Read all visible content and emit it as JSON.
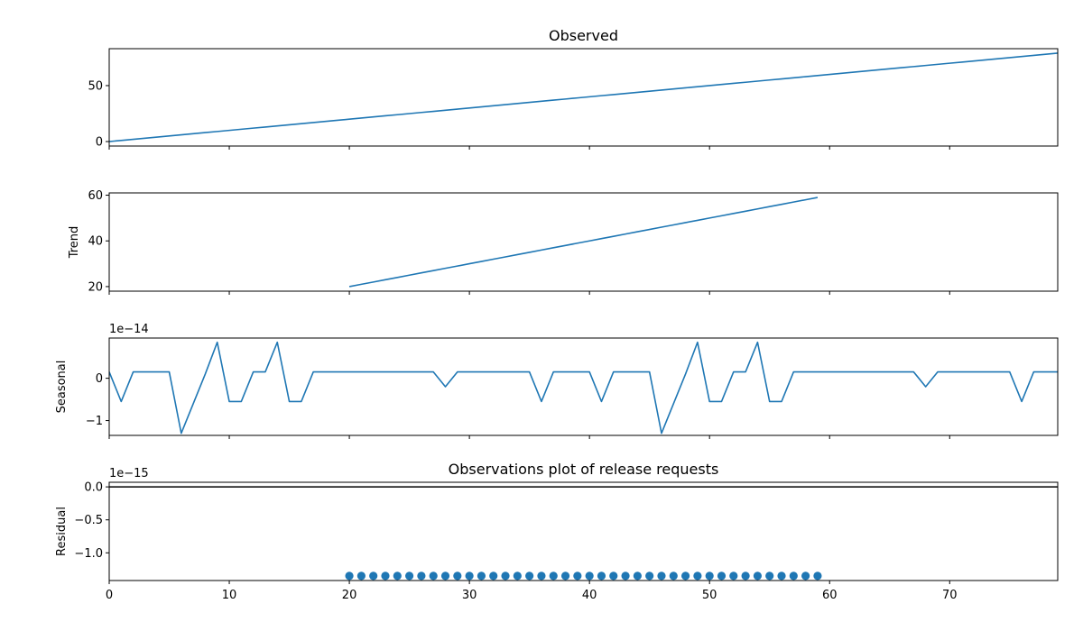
{
  "figure": {
    "line_color": "#1f77b4",
    "marker_color": "#1f77b4"
  },
  "chart_data": [
    {
      "type": "line",
      "title": "Observed",
      "ylabel": "",
      "offset_text": "",
      "xlim": [
        0,
        79
      ],
      "ylim": [
        -4,
        83
      ],
      "yticks": [
        0,
        50
      ],
      "ytick_labels": [
        "0",
        "50"
      ],
      "series": [
        {
          "x_start": 0,
          "step": 1,
          "values": [
            0,
            1,
            2,
            3,
            4,
            5,
            6,
            7,
            8,
            9,
            10,
            11,
            12,
            13,
            14,
            15,
            16,
            17,
            18,
            19,
            20,
            21,
            22,
            23,
            24,
            25,
            26,
            27,
            28,
            29,
            30,
            31,
            32,
            33,
            34,
            35,
            36,
            37,
            38,
            39,
            40,
            41,
            42,
            43,
            44,
            45,
            46,
            47,
            48,
            49,
            50,
            51,
            52,
            53,
            54,
            55,
            56,
            57,
            58,
            59,
            60,
            61,
            62,
            63,
            64,
            65,
            66,
            67,
            68,
            69,
            70,
            71,
            72,
            73,
            74,
            75,
            76,
            77,
            78,
            79
          ]
        }
      ]
    },
    {
      "type": "line",
      "title": "",
      "ylabel": "Trend",
      "offset_text": "",
      "xlim": [
        0,
        79
      ],
      "ylim": [
        18,
        61
      ],
      "yticks": [
        20,
        40,
        60
      ],
      "ytick_labels": [
        "20",
        "40",
        "60"
      ],
      "series": [
        {
          "x_start": 20,
          "step": 1,
          "values": [
            20,
            21,
            22,
            23,
            24,
            25,
            26,
            27,
            28,
            29,
            30,
            31,
            32,
            33,
            34,
            35,
            36,
            37,
            38,
            39,
            40,
            41,
            42,
            43,
            44,
            45,
            46,
            47,
            48,
            49,
            50,
            51,
            52,
            53,
            54,
            55,
            56,
            57,
            58,
            59
          ]
        }
      ]
    },
    {
      "type": "line",
      "title": "",
      "ylabel": "Seasonal",
      "offset_text": "1e−14",
      "xlim": [
        0,
        79
      ],
      "ylim": [
        -1.35,
        0.95
      ],
      "yticks": [
        -1,
        0
      ],
      "ytick_labels": [
        "−1",
        "0"
      ],
      "series": [
        {
          "x_start": 0,
          "step": 1,
          "values": [
            0.15,
            -0.55,
            0.15,
            0.15,
            0.15,
            0.15,
            -1.3,
            -0.6,
            0.1,
            0.85,
            -0.55,
            -0.55,
            0.15,
            0.15,
            0.85,
            -0.55,
            -0.55,
            0.15,
            0.15,
            0.15,
            0.15,
            0.15,
            0.15,
            0.15,
            0.15,
            0.15,
            0.15,
            0.15,
            -0.2,
            0.15,
            0.15,
            0.15,
            0.15,
            0.15,
            0.15,
            0.15,
            -0.55,
            0.15,
            0.15,
            0.15,
            0.15,
            -0.55,
            0.15,
            0.15,
            0.15,
            0.15,
            -1.3,
            -0.6,
            0.1,
            0.85,
            -0.55,
            -0.55,
            0.15,
            0.15,
            0.85,
            -0.55,
            -0.55,
            0.15,
            0.15,
            0.15,
            0.15,
            0.15,
            0.15,
            0.15,
            0.15,
            0.15,
            0.15,
            0.15,
            -0.2,
            0.15,
            0.15,
            0.15,
            0.15,
            0.15,
            0.15,
            0.15,
            -0.55,
            0.15,
            0.15,
            0.15
          ]
        }
      ]
    },
    {
      "type": "scatter",
      "title": "Observations plot of release requests",
      "ylabel": "Residual",
      "offset_text": "1e−15",
      "xlim": [
        0,
        79
      ],
      "ylim": [
        -1.42,
        0.07
      ],
      "yticks": [
        -1.0,
        -0.5,
        0.0
      ],
      "ytick_labels": [
        "−1.0",
        "−0.5",
        "0.0"
      ],
      "hline": 0,
      "series": [
        {
          "x": [
            20,
            21,
            22,
            23,
            24,
            25,
            26,
            27,
            28,
            29,
            30,
            31,
            32,
            33,
            34,
            35,
            36,
            37,
            38,
            39,
            40,
            41,
            42,
            43,
            44,
            45,
            46,
            47,
            48,
            49,
            50,
            51,
            52,
            53,
            54,
            55,
            56,
            57,
            58,
            59
          ],
          "y": [
            -1.35,
            -1.35,
            -1.35,
            -1.35,
            -1.35,
            -1.35,
            -1.35,
            -1.35,
            -1.35,
            -1.35,
            -1.35,
            -1.35,
            -1.35,
            -1.35,
            -1.35,
            -1.35,
            -1.35,
            -1.35,
            -1.35,
            -1.35,
            -1.35,
            -1.35,
            -1.35,
            -1.35,
            -1.35,
            -1.35,
            -1.35,
            -1.35,
            -1.35,
            -1.35,
            -1.35,
            -1.35,
            -1.35,
            -1.35,
            -1.35,
            -1.35,
            -1.35,
            -1.35,
            -1.35,
            -1.35
          ]
        }
      ]
    }
  ],
  "shared_x": {
    "xticks": [
      0,
      10,
      20,
      30,
      40,
      50,
      60,
      70
    ],
    "xtick_labels": [
      "0",
      "10",
      "20",
      "30",
      "40",
      "50",
      "60",
      "70"
    ]
  }
}
